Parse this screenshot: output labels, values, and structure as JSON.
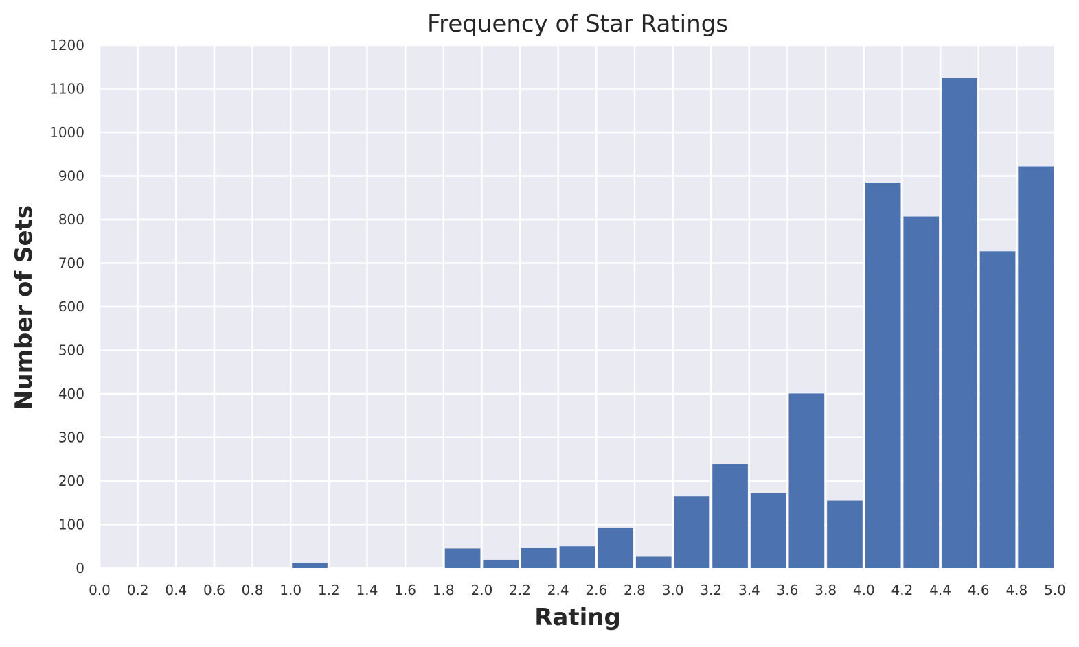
{
  "chart_data": {
    "type": "bar",
    "title": "Frequency of Star Ratings",
    "xlabel": "Rating",
    "ylabel": "Number of Sets",
    "xlim": [
      0.0,
      5.0
    ],
    "ylim": [
      0,
      1200
    ],
    "bin_width": 0.2,
    "x_ticks": [
      "0.0",
      "0.2",
      "0.4",
      "0.6",
      "0.8",
      "1.0",
      "1.2",
      "1.4",
      "1.6",
      "1.8",
      "2.0",
      "2.2",
      "2.4",
      "2.6",
      "2.8",
      "3.0",
      "3.2",
      "3.4",
      "3.6",
      "3.8",
      "4.0",
      "4.2",
      "4.4",
      "4.6",
      "4.8",
      "5.0"
    ],
    "y_ticks": [
      "0",
      "100",
      "200",
      "300",
      "400",
      "500",
      "600",
      "700",
      "800",
      "900",
      "1000",
      "1100",
      "1200"
    ],
    "bins": [
      {
        "x0": 1.0,
        "x1": 1.2,
        "value": 12
      },
      {
        "x0": 1.8,
        "x1": 2.0,
        "value": 45
      },
      {
        "x0": 2.0,
        "x1": 2.2,
        "value": 19
      },
      {
        "x0": 2.2,
        "x1": 2.4,
        "value": 47
      },
      {
        "x0": 2.4,
        "x1": 2.6,
        "value": 50
      },
      {
        "x0": 2.6,
        "x1": 2.8,
        "value": 93
      },
      {
        "x0": 2.8,
        "x1": 3.0,
        "value": 26
      },
      {
        "x0": 3.0,
        "x1": 3.2,
        "value": 165
      },
      {
        "x0": 3.2,
        "x1": 3.4,
        "value": 238
      },
      {
        "x0": 3.4,
        "x1": 3.6,
        "value": 172
      },
      {
        "x0": 3.6,
        "x1": 3.8,
        "value": 401
      },
      {
        "x0": 3.8,
        "x1": 4.0,
        "value": 155
      },
      {
        "x0": 4.0,
        "x1": 4.2,
        "value": 885
      },
      {
        "x0": 4.2,
        "x1": 4.4,
        "value": 807
      },
      {
        "x0": 4.4,
        "x1": 4.6,
        "value": 1125
      },
      {
        "x0": 4.6,
        "x1": 4.8,
        "value": 727
      },
      {
        "x0": 4.8,
        "x1": 5.0,
        "value": 922
      }
    ],
    "grid": true,
    "colors": {
      "bar": "#4c72b0",
      "plot_background": "#eaeaf2",
      "grid": "#ffffff"
    }
  }
}
